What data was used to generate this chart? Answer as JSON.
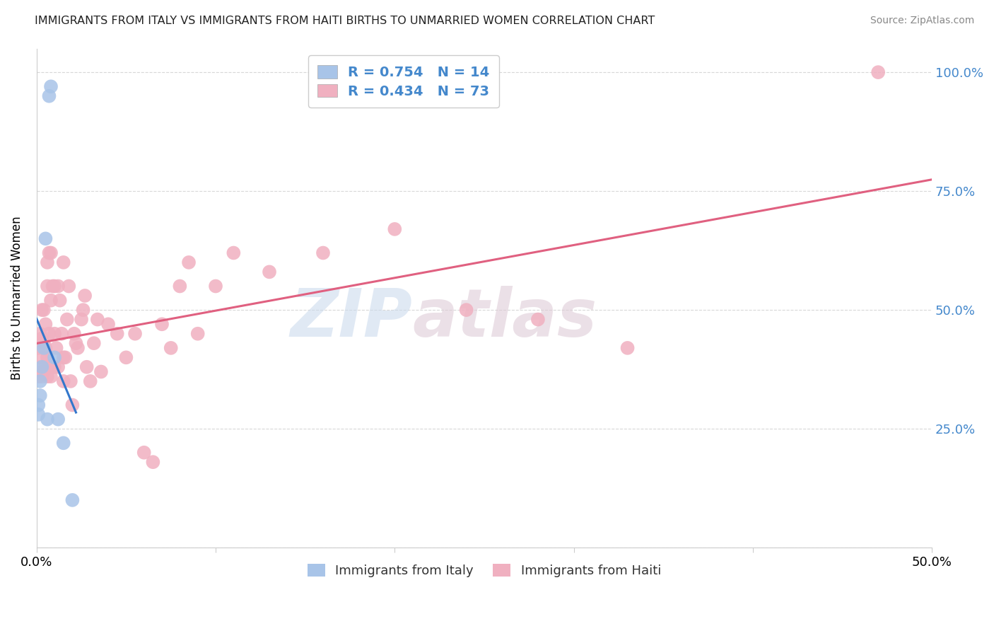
{
  "title": "IMMIGRANTS FROM ITALY VS IMMIGRANTS FROM HAITI BIRTHS TO UNMARRIED WOMEN CORRELATION CHART",
  "source": "Source: ZipAtlas.com",
  "ylabel": "Births to Unmarried Women",
  "xlabel_italy": "Immigrants from Italy",
  "xlabel_haiti": "Immigrants from Haiti",
  "xlim": [
    0.0,
    0.5
  ],
  "ylim": [
    0.0,
    1.05
  ],
  "ytick_vals": [
    0.0,
    0.25,
    0.5,
    0.75,
    1.0
  ],
  "ytick_labels": [
    "",
    "25.0%",
    "50.0%",
    "75.0%",
    "100.0%"
  ],
  "xtick_vals": [
    0.0,
    0.1,
    0.2,
    0.3,
    0.4,
    0.5
  ],
  "xtick_labels": [
    "0.0%",
    "",
    "",
    "",
    "",
    "50.0%"
  ],
  "italy_color": "#a8c4e8",
  "haiti_color": "#f0b0c0",
  "italy_line_color": "#3377cc",
  "haiti_line_color": "#e06080",
  "italy_R": 0.754,
  "italy_N": 14,
  "haiti_R": 0.434,
  "haiti_N": 73,
  "italy_scatter_x": [
    0.001,
    0.001,
    0.002,
    0.002,
    0.003,
    0.004,
    0.005,
    0.006,
    0.007,
    0.008,
    0.01,
    0.012,
    0.015,
    0.02
  ],
  "italy_scatter_y": [
    0.28,
    0.3,
    0.32,
    0.35,
    0.38,
    0.42,
    0.65,
    0.27,
    0.95,
    0.97,
    0.4,
    0.27,
    0.22,
    0.1
  ],
  "haiti_scatter_x": [
    0.001,
    0.001,
    0.002,
    0.002,
    0.003,
    0.003,
    0.003,
    0.003,
    0.004,
    0.004,
    0.004,
    0.005,
    0.005,
    0.005,
    0.006,
    0.006,
    0.006,
    0.006,
    0.007,
    0.007,
    0.007,
    0.008,
    0.008,
    0.008,
    0.009,
    0.009,
    0.01,
    0.01,
    0.01,
    0.011,
    0.012,
    0.012,
    0.013,
    0.014,
    0.015,
    0.015,
    0.015,
    0.016,
    0.017,
    0.018,
    0.019,
    0.02,
    0.021,
    0.022,
    0.023,
    0.025,
    0.026,
    0.027,
    0.028,
    0.03,
    0.032,
    0.034,
    0.036,
    0.04,
    0.045,
    0.05,
    0.055,
    0.06,
    0.065,
    0.07,
    0.075,
    0.08,
    0.085,
    0.09,
    0.1,
    0.11,
    0.13,
    0.16,
    0.2,
    0.24,
    0.28,
    0.33,
    0.47
  ],
  "haiti_scatter_y": [
    0.36,
    0.42,
    0.38,
    0.45,
    0.36,
    0.4,
    0.44,
    0.5,
    0.37,
    0.43,
    0.5,
    0.38,
    0.42,
    0.47,
    0.36,
    0.4,
    0.55,
    0.6,
    0.38,
    0.45,
    0.62,
    0.36,
    0.52,
    0.62,
    0.38,
    0.55,
    0.38,
    0.45,
    0.55,
    0.42,
    0.38,
    0.55,
    0.52,
    0.45,
    0.35,
    0.4,
    0.6,
    0.4,
    0.48,
    0.55,
    0.35,
    0.3,
    0.45,
    0.43,
    0.42,
    0.48,
    0.5,
    0.53,
    0.38,
    0.35,
    0.43,
    0.48,
    0.37,
    0.47,
    0.45,
    0.4,
    0.45,
    0.2,
    0.18,
    0.47,
    0.42,
    0.55,
    0.6,
    0.45,
    0.55,
    0.62,
    0.58,
    0.62,
    0.67,
    0.5,
    0.48,
    0.42,
    1.0
  ],
  "watermark_zip": "ZIP",
  "watermark_atlas": "atlas",
  "background_color": "#ffffff",
  "grid_color": "#d8d8d8"
}
